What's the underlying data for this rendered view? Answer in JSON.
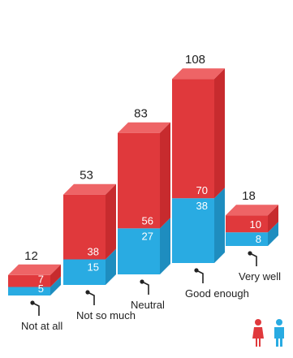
{
  "chart_data": {
    "type": "bar",
    "stacked": true,
    "style": "3d",
    "categories": [
      "Not at all",
      "Not so much",
      "Neutral",
      "Good enough",
      "Very well"
    ],
    "series": [
      {
        "values": [
          5,
          15,
          27,
          38,
          8
        ]
      },
      {
        "values": [
          7,
          38,
          56,
          70,
          10
        ]
      }
    ],
    "totals": [
      12,
      53,
      83,
      108,
      18
    ],
    "legend": {
      "position": "bottom-right",
      "icons": [
        "female-icon",
        "male-icon"
      ]
    },
    "colors": {
      "bottom_front": "#29ABE2",
      "bottom_side": "#1E8DBF",
      "top_front": "#E0393C",
      "top_side": "#C72B2E",
      "top_cap": "#EE6466",
      "stem": "#222222"
    },
    "grid": false
  }
}
